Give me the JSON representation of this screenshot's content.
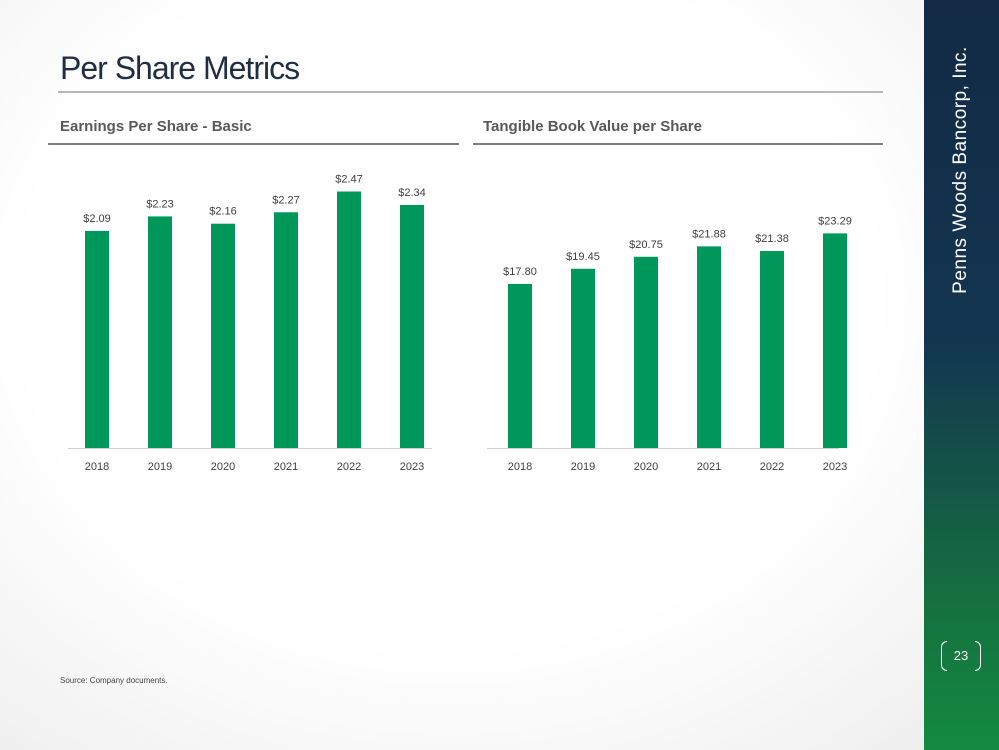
{
  "page": {
    "title": "Per Share Metrics",
    "sidebar_text": "Penns Woods Bancorp, Inc.",
    "page_number": "23",
    "source": "Source: Company documents."
  },
  "colors": {
    "bar": "#00985a",
    "sidebar_top": "#122a45",
    "sidebar_bottom": "#138a40"
  },
  "chart_data": [
    {
      "type": "bar",
      "title": "Earnings Per Share - Basic",
      "categories": [
        "2018",
        "2019",
        "2020",
        "2021",
        "2022",
        "2023"
      ],
      "values": [
        2.09,
        2.23,
        2.16,
        2.27,
        2.47,
        2.34
      ],
      "labels": [
        "$2.09",
        "$2.23",
        "$2.16",
        "$2.27",
        "$2.47",
        "$2.34"
      ],
      "xlabel": "",
      "ylabel": "",
      "ylim": [
        0,
        2.6
      ],
      "grid": false
    },
    {
      "type": "bar",
      "title": "Tangible Book Value per Share",
      "categories": [
        "2018",
        "2019",
        "2020",
        "2021",
        "2022",
        "2023"
      ],
      "values": [
        17.8,
        19.45,
        20.75,
        21.88,
        21.38,
        23.29
      ],
      "labels": [
        "$17.80",
        "$19.45",
        "$20.75",
        "$21.88",
        "$21.38",
        "$23.29"
      ],
      "xlabel": "",
      "ylabel": "",
      "ylim": [
        0,
        29.3
      ],
      "grid": false
    }
  ]
}
